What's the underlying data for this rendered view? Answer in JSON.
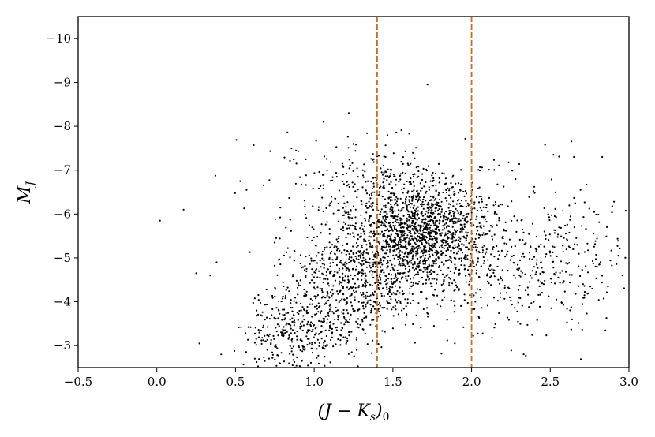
{
  "chart_data": {
    "type": "scatter",
    "title": "",
    "xlabel": "(J − K_s)_0",
    "ylabel": "M_J",
    "xlabel_parts": {
      "open": "(J − K",
      "sub": "s",
      "close": ")",
      "sub2": "0"
    },
    "ylabel_parts": {
      "main": "M",
      "sub": "J"
    },
    "xlim": [
      -0.5,
      3.0
    ],
    "ylim": [
      -2.5,
      -10.5
    ],
    "y_inverted": true,
    "x_ticks": [
      -0.5,
      0.0,
      0.5,
      1.0,
      1.5,
      2.0,
      2.5,
      3.0
    ],
    "x_tick_labels": [
      "−0.5",
      "0.0",
      "0.5",
      "1.0",
      "1.5",
      "2.0",
      "2.5",
      "3.0"
    ],
    "y_ticks": [
      -3,
      -4,
      -5,
      -6,
      -7,
      -8,
      -9,
      -10
    ],
    "y_tick_labels": [
      "−3",
      "−4",
      "−5",
      "−6",
      "−7",
      "−8",
      "−9",
      "−10"
    ],
    "grid": false,
    "reference_lines": [
      {
        "orientation": "vertical",
        "x": 1.4,
        "style": "dashed",
        "color": "#d2691e"
      },
      {
        "orientation": "vertical",
        "x": 2.0,
        "style": "dashed",
        "color": "#d2691e"
      }
    ],
    "series": [
      {
        "color": "#000000",
        "marker": "dot",
        "notable_points": [
          {
            "x": 0.02,
            "y": -5.85
          },
          {
            "x": 0.17,
            "y": -6.1
          },
          {
            "x": 0.25,
            "y": -4.65
          },
          {
            "x": 0.27,
            "y": -3.05
          },
          {
            "x": 0.34,
            "y": -4.6
          },
          {
            "x": 0.38,
            "y": -4.9
          },
          {
            "x": 0.53,
            "y": -6.75
          },
          {
            "x": 0.57,
            "y": -6.55
          },
          {
            "x": 1.72,
            "y": -8.95
          },
          {
            "x": 1.06,
            "y": -8.1
          },
          {
            "x": 1.22,
            "y": -8.3
          },
          {
            "x": 2.65,
            "y": -7.3
          },
          {
            "x": 2.83,
            "y": -7.3
          },
          {
            "x": 2.52,
            "y": -7.35
          }
        ],
        "clusters": [
          {
            "cx": 1.68,
            "cy": -5.7,
            "sx": 0.22,
            "sy": 0.55,
            "n": 1150
          },
          {
            "cx": 1.55,
            "cy": -5.0,
            "sx": 0.3,
            "sy": 0.75,
            "n": 700
          },
          {
            "cx": 1.15,
            "cy": -4.2,
            "sx": 0.2,
            "sy": 0.7,
            "n": 500
          },
          {
            "cx": 0.85,
            "cy": -3.2,
            "sx": 0.15,
            "sy": 0.45,
            "n": 260
          },
          {
            "cx": 2.45,
            "cy": -5.0,
            "sx": 0.3,
            "sy": 0.85,
            "n": 380
          },
          {
            "cx": 1.35,
            "cy": -6.8,
            "sx": 0.35,
            "sy": 0.45,
            "n": 180
          }
        ]
      }
    ]
  }
}
